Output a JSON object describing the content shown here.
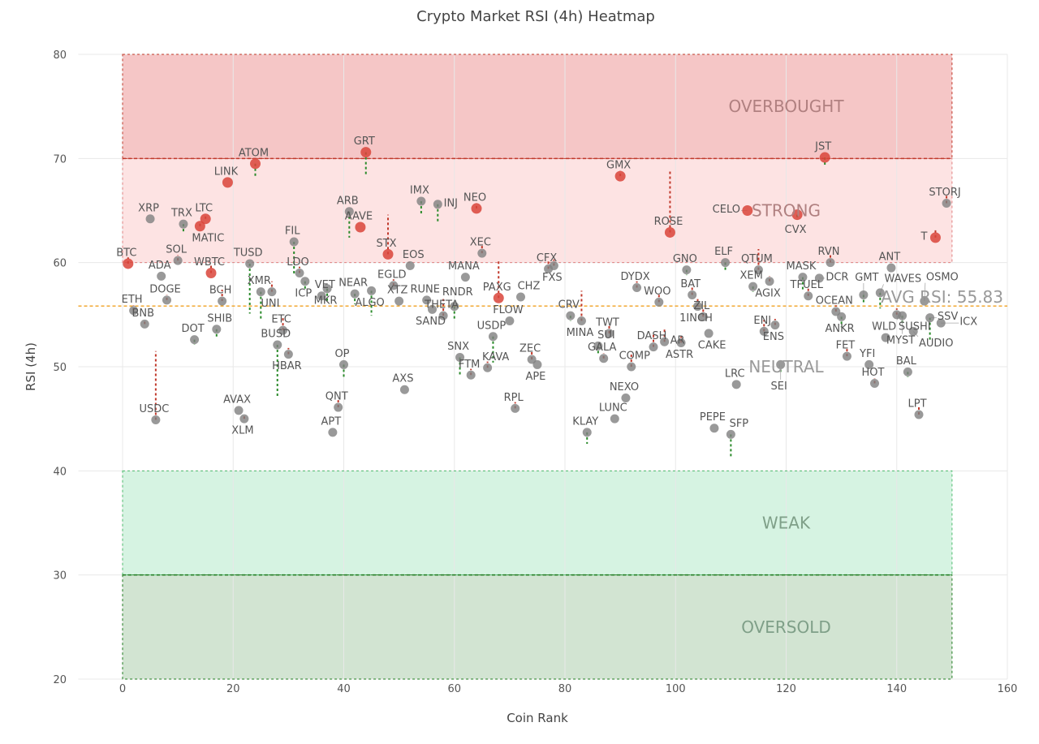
{
  "chart_data": {
    "type": "scatter",
    "title": "Crypto Market RSI (4h) Heatmap",
    "xlabel": "Coin Rank",
    "ylabel": "RSI (4h)",
    "xlim": [
      -8,
      160
    ],
    "ylim": [
      20,
      80
    ],
    "xticks": [
      0,
      20,
      40,
      60,
      80,
      100,
      120,
      140,
      160
    ],
    "yticks": [
      20,
      30,
      40,
      50,
      60,
      70,
      80
    ],
    "grid": true,
    "bands": [
      {
        "label": "OVERBOUGHT",
        "from": 70,
        "to": 80,
        "fill": "#f5c6c6",
        "line": "#c0392b"
      },
      {
        "label": "STRONG",
        "from": 60,
        "to": 70,
        "fill": "#fde3e3",
        "line": "#e08080"
      },
      {
        "label": "NEUTRAL",
        "from": 40,
        "to": 60,
        "fill": "none",
        "line": "none"
      },
      {
        "label": "WEAK",
        "from": 30,
        "to": 40,
        "fill": "#d6f3e2",
        "line": "#4cbb6c"
      },
      {
        "label": "OVERSOLD",
        "from": 20,
        "to": 30,
        "fill": "#d2e4d2",
        "line": "#1e7b1e"
      }
    ],
    "band_x_range": [
      0,
      150
    ],
    "average": {
      "label": "AVG RSI: 55.83",
      "value": 55.83,
      "color": "#f0a020"
    },
    "colors": {
      "highlight": "#d9443a",
      "normal": "#808080",
      "rise": "#2a8a2a",
      "fall": "#c0392b"
    },
    "points": [
      {
        "name": "BTC",
        "rank": 1,
        "rsi": 59.9,
        "prev": 60.5,
        "hl": true
      },
      {
        "name": "ETH",
        "rank": 2,
        "rsi": 55.4,
        "prev": 55.9
      },
      {
        "name": "BNB",
        "rank": 4,
        "rsi": 54.1,
        "prev": 54.5
      },
      {
        "name": "XRP",
        "rank": 5,
        "rsi": 64.2
      },
      {
        "name": "USDC",
        "rank": 6,
        "rsi": 44.9,
        "prev": 51.5
      },
      {
        "name": "ADA",
        "rank": 7,
        "rsi": 58.7
      },
      {
        "name": "DOGE",
        "rank": 8,
        "rsi": 56.4,
        "prev": 56.9
      },
      {
        "name": "SOL",
        "rank": 10,
        "rsi": 60.2,
        "prev": 60.7
      },
      {
        "name": "TRX",
        "rank": 11,
        "rsi": 63.7,
        "prev": 62.9
      },
      {
        "name": "DOT",
        "rank": 13,
        "rsi": 52.6,
        "prev": 52.1
      },
      {
        "name": "MATIC",
        "rank": 14,
        "rsi": 63.5,
        "prev": 63.9,
        "hl": true
      },
      {
        "name": "LTC",
        "rank": 15,
        "rsi": 64.2,
        "prev": 64.6,
        "hl": true
      },
      {
        "name": "WBTC",
        "rank": 16,
        "rsi": 59.0,
        "prev": 59.8,
        "hl": true
      },
      {
        "name": "SHIB",
        "rank": 17,
        "rsi": 53.6,
        "prev": 52.9
      },
      {
        "name": "BCH",
        "rank": 18,
        "rsi": 56.3,
        "prev": 57.4
      },
      {
        "name": "LINK",
        "rank": 19,
        "rsi": 67.7,
        "hl": true
      },
      {
        "name": "AVAX",
        "rank": 21,
        "rsi": 45.8
      },
      {
        "name": "XLM",
        "rank": 22,
        "rsi": 45.0,
        "prev": 45.4
      },
      {
        "name": "TUSD",
        "rank": 23,
        "rsi": 59.9,
        "prev": 55.1
      },
      {
        "name": "ATOM",
        "rank": 24,
        "rsi": 69.5,
        "prev": 68.1,
        "hl": true
      },
      {
        "name": "XMR",
        "rank": 25,
        "rsi": 57.2,
        "prev": 54.4
      },
      {
        "name": "UNI",
        "rank": 27,
        "rsi": 57.2,
        "prev": 58.2
      },
      {
        "name": "BUSD",
        "rank": 28,
        "rsi": 52.1,
        "prev": 47.0
      },
      {
        "name": "ETC",
        "rank": 29,
        "rsi": 53.5,
        "prev": 54.7
      },
      {
        "name": "HBAR",
        "rank": 30,
        "rsi": 51.2,
        "prev": 51.8
      },
      {
        "name": "FIL",
        "rank": 31,
        "rsi": 62.0,
        "prev": 58.9
      },
      {
        "name": "LDO",
        "rank": 32,
        "rsi": 59.0,
        "prev": 59.6
      },
      {
        "name": "ICP",
        "rank": 33,
        "rsi": 58.2,
        "prev": 57.3
      },
      {
        "name": "VET",
        "rank": 36,
        "rsi": 56.8
      },
      {
        "name": "MKR",
        "rank": 37,
        "rsi": 57.5,
        "prev": 56.2
      },
      {
        "name": "APT",
        "rank": 38,
        "rsi": 43.7
      },
      {
        "name": "QNT",
        "rank": 39,
        "rsi": 46.1,
        "prev": 46.8
      },
      {
        "name": "OP",
        "rank": 40,
        "rsi": 50.2,
        "prev": 48.8
      },
      {
        "name": "ARB",
        "rank": 41,
        "rsi": 64.9,
        "prev": 62.4
      },
      {
        "name": "NEAR",
        "rank": 42,
        "rsi": 57.0,
        "prev": 56.0
      },
      {
        "name": "AAVE",
        "rank": 43,
        "rsi": 63.4,
        "hl": true
      },
      {
        "name": "GRT",
        "rank": 44,
        "rsi": 70.6,
        "prev": 68.3,
        "hl": true
      },
      {
        "name": "ALGO",
        "rank": 45,
        "rsi": 57.3,
        "prev": 54.9
      },
      {
        "name": "STX",
        "rank": 48,
        "rsi": 60.8,
        "prev": 64.6,
        "hl": true
      },
      {
        "name": "EGLD",
        "rank": 49,
        "rsi": 57.8,
        "prev": 58.4
      },
      {
        "name": "XTZ",
        "rank": 50,
        "rsi": 56.3
      },
      {
        "name": "AXS",
        "rank": 51,
        "rsi": 47.8
      },
      {
        "name": "EOS",
        "rank": 52,
        "rsi": 59.7
      },
      {
        "name": "IMX",
        "rank": 54,
        "rsi": 65.9,
        "prev": 64.6
      },
      {
        "name": "RUNE",
        "rank": 55,
        "rsi": 56.4
      },
      {
        "name": "SAND",
        "rank": 56,
        "rsi": 55.5
      },
      {
        "name": "INJ",
        "rank": 57,
        "rsi": 65.6,
        "prev": 63.8
      },
      {
        "name": "THETA",
        "rank": 58,
        "rsi": 54.9,
        "prev": 56.5
      },
      {
        "name": "RNDR",
        "rank": 60,
        "rsi": 55.8,
        "prev": 54.5
      },
      {
        "name": "SNX",
        "rank": 61,
        "rsi": 50.9,
        "prev": 49.1
      },
      {
        "name": "MANA",
        "rank": 62,
        "rsi": 58.6
      },
      {
        "name": "FTM",
        "rank": 63,
        "rsi": 49.2,
        "prev": 49.8
      },
      {
        "name": "NEO",
        "rank": 64,
        "rsi": 65.2,
        "prev": 65.7,
        "hl": true
      },
      {
        "name": "XEC",
        "rank": 65,
        "rsi": 60.9,
        "prev": 61.8
      },
      {
        "name": "KAVA",
        "rank": 66,
        "rsi": 49.9,
        "prev": 50.5
      },
      {
        "name": "USDP",
        "rank": 67,
        "rsi": 52.9,
        "prev": 50.4
      },
      {
        "name": "PAXG",
        "rank": 68,
        "rsi": 56.6,
        "prev": 60.3,
        "hl": true
      },
      {
        "name": "FLOW",
        "rank": 70,
        "rsi": 54.4
      },
      {
        "name": "RPL",
        "rank": 71,
        "rsi": 46.0,
        "prev": 46.6
      },
      {
        "name": "CHZ",
        "rank": 72,
        "rsi": 56.7
      },
      {
        "name": "ZEC",
        "rank": 74,
        "rsi": 50.7,
        "prev": 51.4
      },
      {
        "name": "APE",
        "rank": 75,
        "rsi": 50.2
      },
      {
        "name": "CFX",
        "rank": 77,
        "rsi": 59.4,
        "prev": 60.2
      },
      {
        "name": "FXS",
        "rank": 78,
        "rsi": 59.7,
        "prev": 60.3
      },
      {
        "name": "CRV",
        "rank": 81,
        "rsi": 54.9,
        "prev": 54.4
      },
      {
        "name": "MINA",
        "rank": 83,
        "rsi": 54.4,
        "prev": 57.3
      },
      {
        "name": "KLAY",
        "rank": 84,
        "rsi": 43.7,
        "prev": 42.6
      },
      {
        "name": "SUI",
        "rank": 86,
        "rsi": 52.0,
        "prev": 51.1
      },
      {
        "name": "GALA",
        "rank": 87,
        "rsi": 50.8,
        "prev": 51.3
      },
      {
        "name": "TWT",
        "rank": 88,
        "rsi": 53.2,
        "prev": 54.1
      },
      {
        "name": "LUNC",
        "rank": 89,
        "rsi": 45.0
      },
      {
        "name": "GMX",
        "rank": 90,
        "rsi": 68.3,
        "prev": 68.8,
        "hl": true
      },
      {
        "name": "NEXO",
        "rank": 91,
        "rsi": 47.0
      },
      {
        "name": "COMP",
        "rank": 92,
        "rsi": 50.0,
        "prev": 51.3
      },
      {
        "name": "DYDX",
        "rank": 93,
        "rsi": 57.6,
        "prev": 58.2
      },
      {
        "name": "DASH",
        "rank": 96,
        "rsi": 51.9,
        "prev": 53.1
      },
      {
        "name": "WOO",
        "rank": 97,
        "rsi": 56.2,
        "prev": 57.1
      },
      {
        "name": "AR",
        "rank": 98,
        "rsi": 52.4,
        "prev": 53.6
      },
      {
        "name": "ROSE",
        "rank": 99,
        "rsi": 62.9,
        "prev": 68.9,
        "hl": true
      },
      {
        "name": "ASTR",
        "rank": 101,
        "rsi": 52.3,
        "prev": 52.9
      },
      {
        "name": "GNO",
        "rank": 102,
        "rsi": 59.3,
        "prev": 58.8
      },
      {
        "name": "BAT",
        "rank": 103,
        "rsi": 56.9,
        "prev": 57.8
      },
      {
        "name": "1INCH",
        "rank": 104,
        "rsi": 55.8,
        "prev": 56.6
      },
      {
        "name": "ZIL",
        "rank": 105,
        "rsi": 54.8,
        "prev": 55.5
      },
      {
        "name": "CAKE",
        "rank": 106,
        "rsi": 53.2
      },
      {
        "name": "PEPE",
        "rank": 107,
        "rsi": 44.1
      },
      {
        "name": "ELF",
        "rank": 109,
        "rsi": 60.0,
        "prev": 59.3
      },
      {
        "name": "SFP",
        "rank": 110,
        "rsi": 43.5,
        "prev": 41.4
      },
      {
        "name": "LRC",
        "rank": 111,
        "rsi": 48.3
      },
      {
        "name": "CELO",
        "rank": 113,
        "rsi": 65.0,
        "hl": true
      },
      {
        "name": "XEM",
        "rank": 114,
        "rsi": 57.7,
        "prev": 57.2
      },
      {
        "name": "QTUM",
        "rank": 115,
        "rsi": 59.3,
        "prev": 61.3
      },
      {
        "name": "ENJ",
        "rank": 116,
        "rsi": 53.4,
        "prev": 54.5
      },
      {
        "name": "AGIX",
        "rank": 117,
        "rsi": 58.2,
        "prev": 58.7
      },
      {
        "name": "ENS",
        "rank": 118,
        "rsi": 54.0,
        "prev": 54.6
      },
      {
        "name": "SEI",
        "rank": 119,
        "rsi": 50.2,
        "prev": 49.3
      },
      {
        "name": "CVX",
        "rank": 122,
        "rsi": 64.6,
        "prev": 64.1,
        "hl": true
      },
      {
        "name": "MASK",
        "rank": 123,
        "rsi": 58.6,
        "prev": 57.4
      },
      {
        "name": "TFUEL",
        "rank": 124,
        "rsi": 56.8,
        "prev": 57.5
      },
      {
        "name": "DCR",
        "rank": 126,
        "rsi": 58.5
      },
      {
        "name": "JST",
        "rank": 127,
        "rsi": 70.1,
        "prev": 69.4,
        "hl": true
      },
      {
        "name": "RVN",
        "rank": 128,
        "rsi": 60.0,
        "prev": 60.7
      },
      {
        "name": "OCEAN",
        "rank": 129,
        "rsi": 55.3,
        "prev": 55.9
      },
      {
        "name": "ANKR",
        "rank": 130,
        "rsi": 54.8,
        "prev": 53.8
      },
      {
        "name": "FET",
        "rank": 131,
        "rsi": 51.0,
        "prev": 51.9
      },
      {
        "name": "GMT",
        "rank": 134,
        "rsi": 56.9,
        "prev": 56.1
      },
      {
        "name": "YFI",
        "rank": 135,
        "rsi": 50.2
      },
      {
        "name": "HOT",
        "rank": 136,
        "rsi": 48.4,
        "prev": 48.9
      },
      {
        "name": "WAVES",
        "rank": 137,
        "rsi": 57.1,
        "prev": 55.6
      },
      {
        "name": "WLD",
        "rank": 138,
        "rsi": 52.8
      },
      {
        "name": "ANT",
        "rank": 139,
        "rsi": 59.5
      },
      {
        "name": "SUSHI",
        "rank": 140,
        "rsi": 55.0,
        "prev": 55.6
      },
      {
        "name": "MYST",
        "rank": 141,
        "rsi": 54.9,
        "prev": 54.0
      },
      {
        "name": "BAL",
        "rank": 142,
        "rsi": 49.5,
        "prev": 49.0
      },
      {
        "name": "AUDIO",
        "rank": 143,
        "rsi": 53.4
      },
      {
        "name": "LPT",
        "rank": 144,
        "rsi": 45.4,
        "prev": 46.2
      },
      {
        "name": "OSMO",
        "rank": 145,
        "rsi": 56.3
      },
      {
        "name": "SSV",
        "rank": 146,
        "rsi": 54.7,
        "prev": 52.5
      },
      {
        "name": "T",
        "rank": 147,
        "rsi": 62.4,
        "prev": 63.3,
        "hl": true
      },
      {
        "name": "ICX",
        "rank": 148,
        "rsi": 54.2
      },
      {
        "name": "STORJ",
        "rank": 149,
        "rsi": 65.7,
        "prev": 66.4
      }
    ]
  }
}
